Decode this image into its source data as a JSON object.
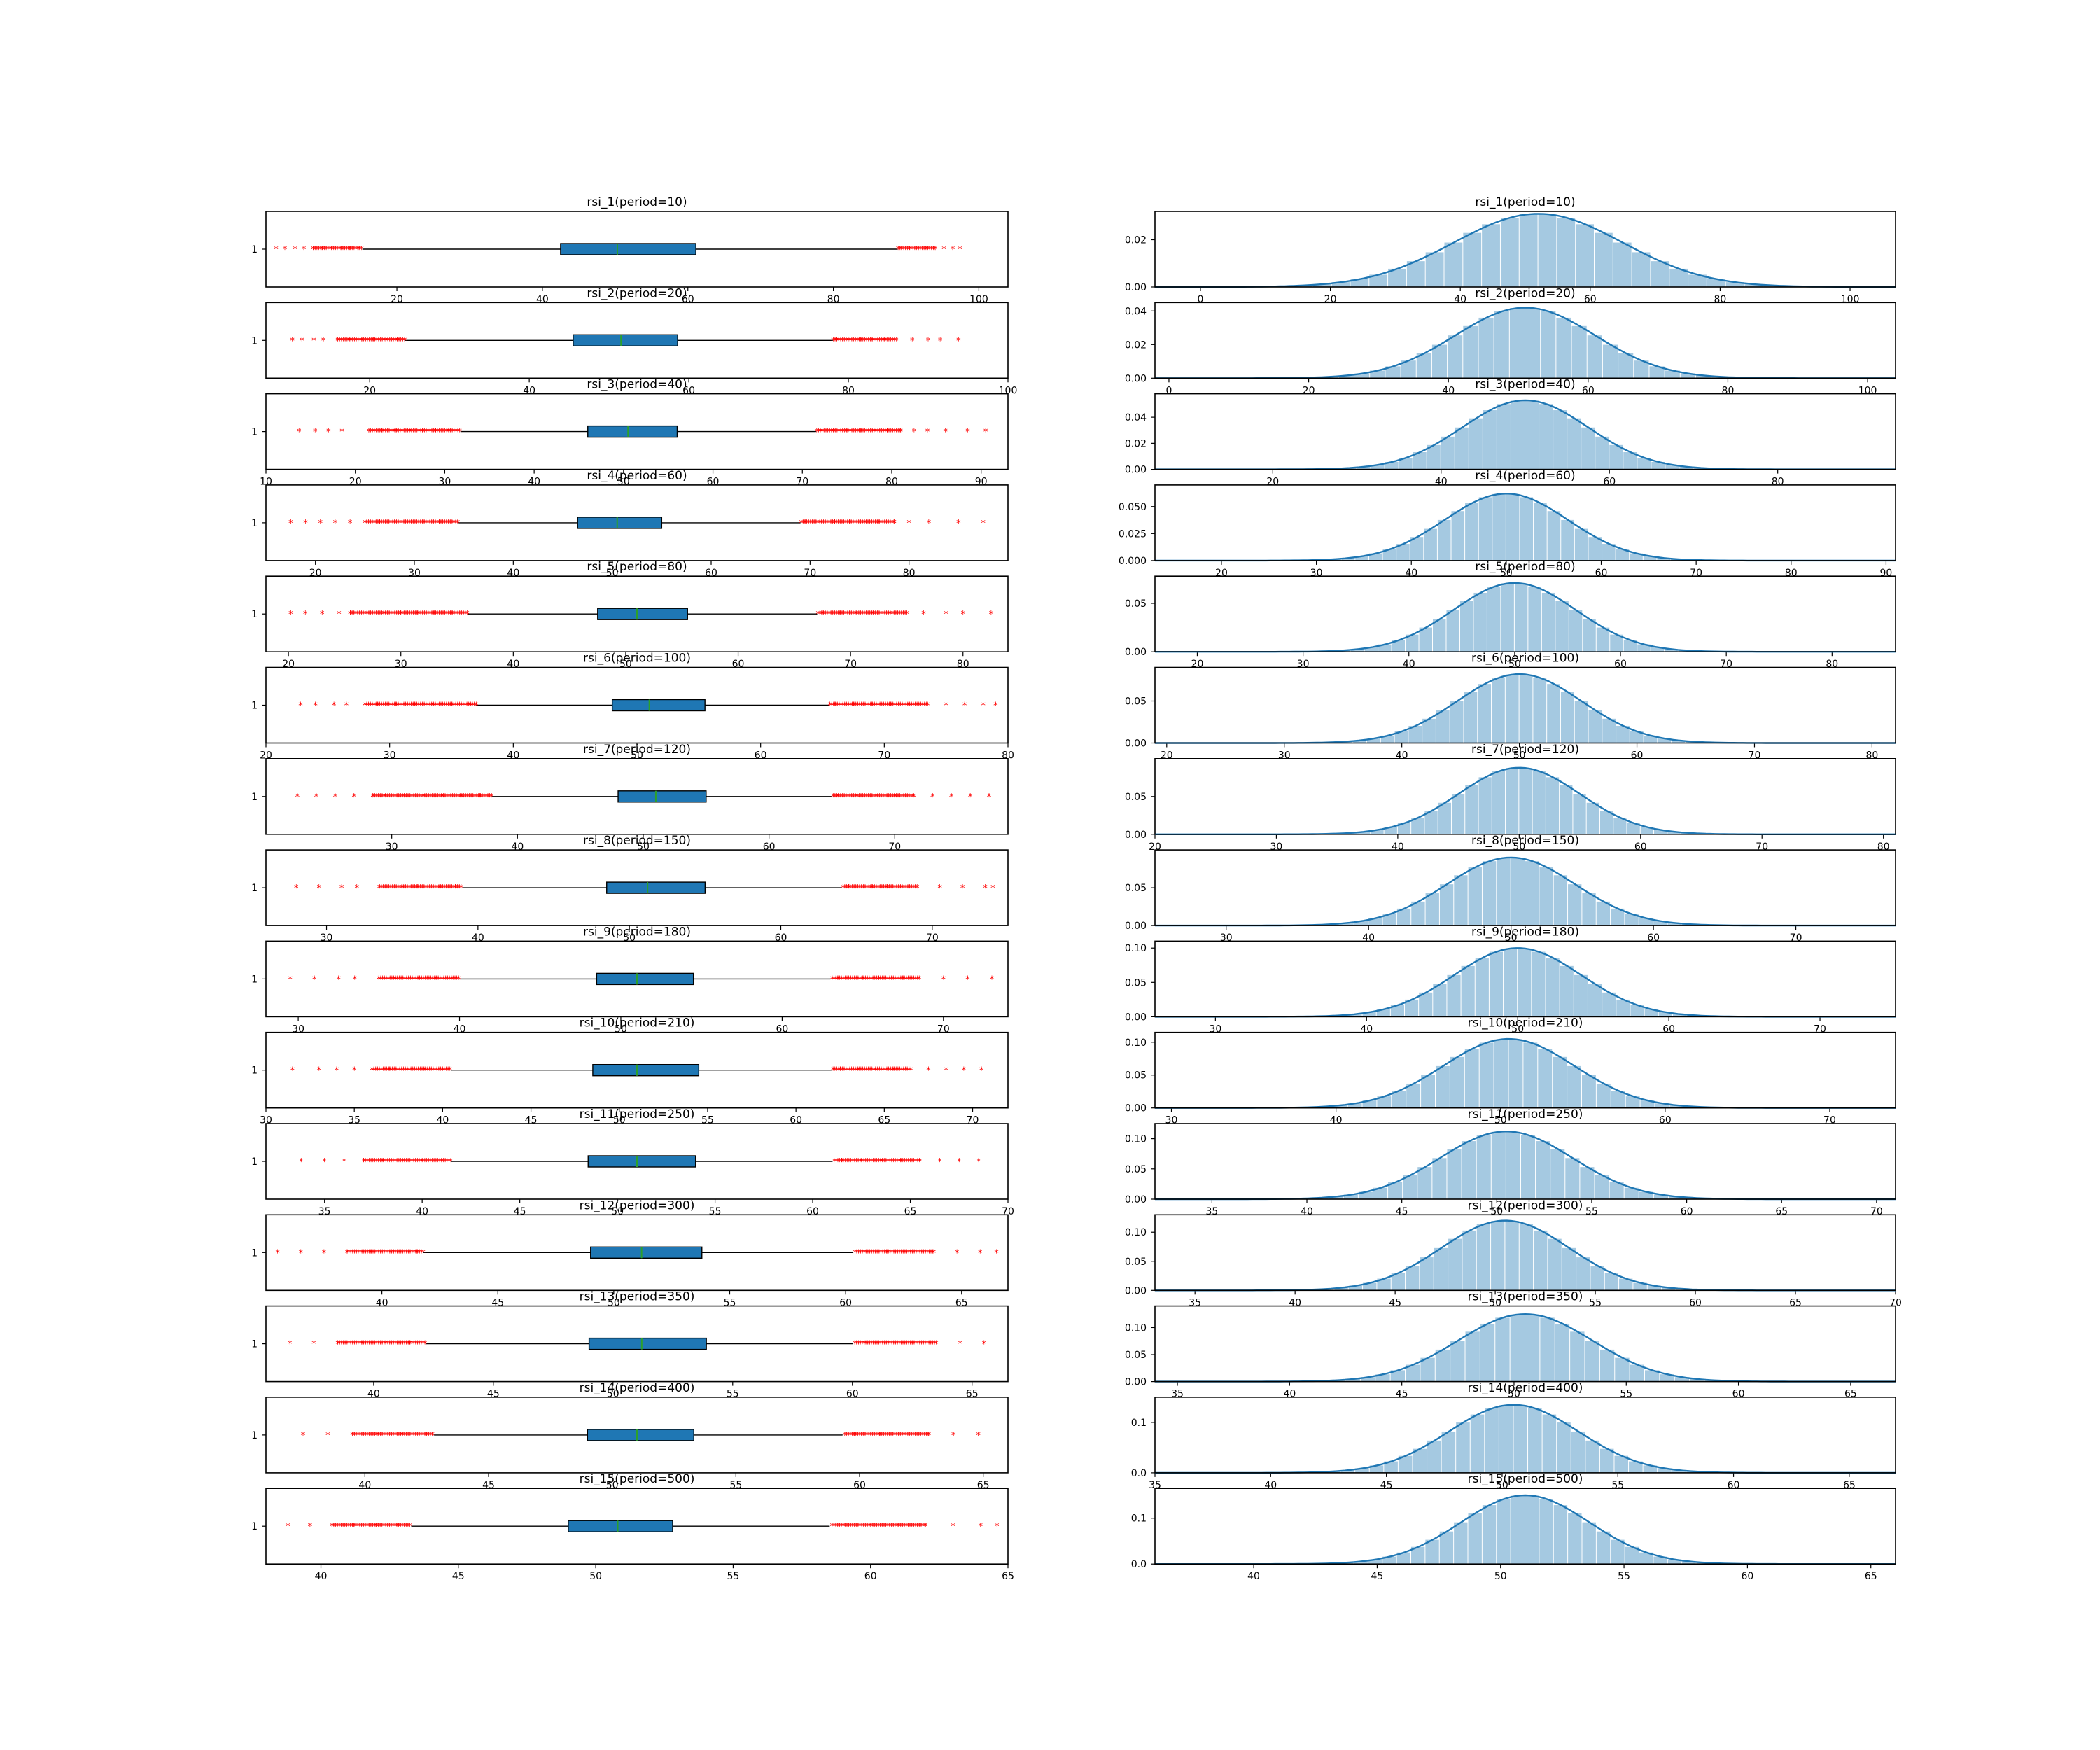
{
  "figure": {
    "box_color": "#1f77b4",
    "median_color": "#2ca02c",
    "flier_color": "#ff0000",
    "flier_marker": "*",
    "hist_color": "#1f77b4"
  },
  "chart_data": [
    {
      "type": "box",
      "title": "rsi_1(period=10)",
      "xlim": [
        2,
        104
      ],
      "xticks": [
        0,
        20,
        40,
        60,
        80,
        100
      ],
      "ytick": "1",
      "whislo": 15.3,
      "q1": 42.5,
      "median": 50.3,
      "q3": 61.1,
      "whishi": 88.8,
      "fliers_low": [
        3.4,
        4.6,
        6.0,
        7.2,
        8.5,
        9.7,
        11.0,
        12.3,
        13.5,
        14.7
      ],
      "fliers_high": [
        89.3,
        90.5,
        91.7,
        92.9,
        94.0,
        95.2,
        96.4,
        97.4
      ]
    },
    {
      "type": "hist",
      "title": "rsi_1(period=10)",
      "xlim": [
        -7,
        107
      ],
      "ylim": [
        0,
        0.032
      ],
      "xticks": [
        0,
        20,
        40,
        60,
        80,
        100
      ],
      "yticks": [
        0.0,
        0.02
      ],
      "yticklabels": [
        "0.00",
        "0.02"
      ],
      "mean": 52,
      "std": 13,
      "peak": 0.031
    },
    {
      "type": "box",
      "title": "rsi_2(period=20)",
      "xlim": [
        7,
        100
      ],
      "xticks": [
        20,
        40,
        60,
        80,
        100
      ],
      "ytick": "1",
      "whislo": 24.5,
      "q1": 45.5,
      "median": 51.5,
      "q3": 58.6,
      "whishi": 78.0,
      "fliers_low": [
        10.3,
        11.5,
        13.0,
        14.2,
        16.0,
        17.5,
        19.0,
        20.5,
        22.0,
        23.5
      ],
      "fliers_high": [
        78.5,
        80.0,
        81.5,
        83.0,
        84.5,
        86.0,
        88.0,
        90.0,
        91.5,
        93.8
      ]
    },
    {
      "type": "hist",
      "title": "rsi_2(period=20)",
      "xlim": [
        -2,
        104
      ],
      "ylim": [
        0,
        0.045
      ],
      "xticks": [
        0,
        20,
        40,
        60,
        80,
        100
      ],
      "yticks": [
        0.0,
        0.02,
        0.04
      ],
      "yticklabels": [
        "0.00",
        "0.02",
        "0.04"
      ],
      "mean": 51,
      "std": 10,
      "peak": 0.042
    },
    {
      "type": "box",
      "title": "rsi_3(period=40)",
      "xlim": [
        10,
        93
      ],
      "xticks": [
        10,
        20,
        30,
        40,
        50,
        60,
        70,
        80,
        90
      ],
      "ytick": "1",
      "whislo": 31.8,
      "q1": 46.0,
      "median": 50.5,
      "q3": 56.0,
      "whishi": 71.5,
      "fliers_low": [
        13.7,
        15.5,
        17.0,
        18.5,
        21.5,
        23.0,
        24.5,
        26.0,
        27.5,
        29.0,
        30.5
      ],
      "fliers_high": [
        72.0,
        73.5,
        75.0,
        76.5,
        78.0,
        79.5,
        81.0,
        82.5,
        84.0,
        86.0,
        88.5,
        90.5
      ]
    },
    {
      "type": "hist",
      "title": "rsi_3(period=40)",
      "xlim": [
        6,
        94
      ],
      "ylim": [
        0,
        0.058
      ],
      "xticks": [
        20,
        40,
        60,
        80
      ],
      "yticks": [
        0.0,
        0.02,
        0.04
      ],
      "yticklabels": [
        "0.00",
        "0.02",
        "0.04"
      ],
      "mean": 50,
      "std": 7.5,
      "peak": 0.053
    },
    {
      "type": "box",
      "title": "rsi_4(period=60)",
      "xlim": [
        15,
        90
      ],
      "xticks": [
        20,
        30,
        40,
        50,
        60,
        70,
        80
      ],
      "ytick": "1",
      "whislo": 34.5,
      "q1": 46.5,
      "median": 50.5,
      "q3": 55.0,
      "whishi": 69.0,
      "fliers_low": [
        17.5,
        19.0,
        20.5,
        22.0,
        23.5,
        25.0,
        26.5,
        28.0,
        29.5,
        31.0,
        32.5,
        34.0
      ],
      "fliers_high": [
        69.5,
        71.0,
        72.5,
        74.0,
        75.5,
        77.0,
        78.5,
        80.0,
        82.0,
        85.0,
        87.5
      ]
    },
    {
      "type": "hist",
      "title": "rsi_4(period=60)",
      "xlim": [
        13,
        91
      ],
      "ylim": [
        0,
        0.07
      ],
      "xticks": [
        20,
        30,
        40,
        50,
        60,
        70,
        80,
        90
      ],
      "yticks": [
        0.0,
        0.025,
        0.05
      ],
      "yticklabels": [
        "0.000",
        "0.025",
        "0.050"
      ],
      "mean": 50,
      "std": 6.5,
      "peak": 0.062
    },
    {
      "type": "box",
      "title": "rsi_5(period=80)",
      "xlim": [
        18,
        84
      ],
      "xticks": [
        20,
        30,
        40,
        50,
        60,
        70,
        80
      ],
      "ytick": "1",
      "whislo": 36.0,
      "q1": 47.5,
      "median": 51.0,
      "q3": 55.5,
      "whishi": 67.0,
      "fliers_low": [
        20.2,
        21.5,
        23.0,
        24.5,
        25.5,
        27.0,
        28.5,
        30.0,
        31.5,
        33.0,
        34.5
      ],
      "fliers_high": [
        67.5,
        69.0,
        70.5,
        72.0,
        73.5,
        75.0,
        76.5,
        78.5,
        80.0,
        82.5
      ]
    },
    {
      "type": "hist",
      "title": "rsi_5(period=80)",
      "xlim": [
        16,
        86
      ],
      "ylim": [
        0,
        0.078
      ],
      "xticks": [
        20,
        30,
        40,
        50,
        60,
        70,
        80
      ],
      "yticks": [
        0.0,
        0.05
      ],
      "yticklabels": [
        "0.00",
        "0.05"
      ],
      "mean": 50,
      "std": 5.8,
      "peak": 0.071
    },
    {
      "type": "box",
      "title": "rsi_6(period=100)",
      "xlim": [
        20,
        80
      ],
      "xticks": [
        20,
        30,
        40,
        50,
        60,
        70,
        80
      ],
      "ytick": "1",
      "whislo": 37.0,
      "q1": 48.0,
      "median": 51.0,
      "q3": 55.5,
      "whishi": 65.5,
      "fliers_low": [
        22.8,
        24.0,
        25.5,
        26.5,
        28.0,
        29.0,
        30.5,
        32.0,
        33.5,
        35.0,
        36.5
      ],
      "fliers_high": [
        66.0,
        67.5,
        69.0,
        70.5,
        72.0,
        73.5,
        75.0,
        76.5,
        78.0,
        79.0
      ]
    },
    {
      "type": "hist",
      "title": "rsi_6(period=100)",
      "xlim": [
        19,
        82
      ],
      "ylim": [
        0,
        0.09
      ],
      "xticks": [
        20,
        30,
        40,
        50,
        60,
        70,
        80
      ],
      "yticks": [
        0.0,
        0.05
      ],
      "yticklabels": [
        "0.00",
        "0.05"
      ],
      "mean": 50,
      "std": 5.3,
      "peak": 0.082
    },
    {
      "type": "box",
      "title": "rsi_7(period=120)",
      "xlim": [
        20,
        79
      ],
      "xticks": [
        30,
        40,
        50,
        60,
        70
      ],
      "ytick": "1",
      "whislo": 38.0,
      "q1": 48.0,
      "median": 51.0,
      "q3": 55.0,
      "whishi": 65.0,
      "fliers_low": [
        22.5,
        24.0,
        25.5,
        27.0,
        28.5,
        29.5,
        31.0,
        32.5,
        34.0,
        35.5,
        37.0
      ],
      "fliers_high": [
        65.5,
        67.0,
        68.5,
        70.0,
        71.5,
        73.0,
        74.5,
        76.0,
        77.5
      ]
    },
    {
      "type": "hist",
      "title": "rsi_7(period=120)",
      "xlim": [
        20,
        81
      ],
      "ylim": [
        0,
        0.1
      ],
      "xticks": [
        20,
        30,
        40,
        50,
        60,
        70,
        80
      ],
      "yticks": [
        0.0,
        0.05
      ],
      "yticklabels": [
        "0.00",
        "0.05"
      ],
      "mean": 50,
      "std": 5.0,
      "peak": 0.088
    },
    {
      "type": "box",
      "title": "rsi_8(period=150)",
      "xlim": [
        26,
        75
      ],
      "xticks": [
        30,
        40,
        50,
        60,
        70
      ],
      "ytick": "1",
      "whislo": 39.0,
      "q1": 48.5,
      "median": 51.2,
      "q3": 55.0,
      "whishi": 64.0,
      "fliers_low": [
        28.0,
        29.5,
        31.0,
        32.0,
        33.5,
        35.0,
        36.0,
        37.5,
        38.5
      ],
      "fliers_high": [
        64.5,
        66.0,
        67.0,
        68.0,
        69.0,
        70.5,
        72.0,
        73.5,
        74.0
      ]
    },
    {
      "type": "hist",
      "title": "rsi_8(period=150)",
      "xlim": [
        25,
        77
      ],
      "ylim": [
        0,
        0.1
      ],
      "xticks": [
        30,
        40,
        50,
        60,
        70
      ],
      "yticks": [
        0.0,
        0.05
      ],
      "yticklabels": [
        "0.00",
        "0.05"
      ],
      "mean": 50,
      "std": 4.5,
      "peak": 0.09
    },
    {
      "type": "box",
      "title": "rsi_9(period=180)",
      "xlim": [
        28,
        74
      ],
      "xticks": [
        30,
        40,
        50,
        60,
        70
      ],
      "ytick": "1",
      "whislo": 40.0,
      "q1": 48.5,
      "median": 51.0,
      "q3": 54.5,
      "whishi": 63.0,
      "fliers_low": [
        29.5,
        31.0,
        32.5,
        33.5,
        35.0,
        36.0,
        37.5,
        38.5,
        39.5
      ],
      "fliers_high": [
        63.5,
        65.0,
        66.0,
        67.5,
        68.5,
        70.0,
        71.5,
        73.0
      ]
    },
    {
      "type": "hist",
      "title": "rsi_9(period=180)",
      "xlim": [
        26,
        75
      ],
      "ylim": [
        0,
        0.11
      ],
      "xticks": [
        30,
        40,
        50,
        60,
        70
      ],
      "yticks": [
        0.0,
        0.05,
        0.1
      ],
      "yticklabels": [
        "0.00",
        "0.05",
        "0.10"
      ],
      "mean": 50,
      "std": 4.2,
      "peak": 0.1
    },
    {
      "type": "box",
      "title": "rsi_10(period=210)",
      "xlim": [
        30,
        72
      ],
      "xticks": [
        30,
        35,
        40,
        45,
        50,
        55,
        60,
        65,
        70
      ],
      "ytick": "1",
      "whislo": 40.5,
      "q1": 48.5,
      "median": 51.0,
      "q3": 54.5,
      "whishi": 62.0,
      "fliers_low": [
        31.5,
        33.0,
        34.0,
        35.0,
        36.0,
        37.0,
        38.0,
        39.0,
        40.0
      ],
      "fliers_high": [
        62.5,
        63.5,
        64.5,
        65.5,
        66.5,
        67.5,
        68.5,
        69.5,
        70.5
      ]
    },
    {
      "type": "hist",
      "title": "rsi_10(period=210)",
      "xlim": [
        29,
        74
      ],
      "ylim": [
        0,
        0.115
      ],
      "xticks": [
        30,
        40,
        50,
        60,
        70
      ],
      "yticks": [
        0.0,
        0.05,
        0.1
      ],
      "yticklabels": [
        "0.00",
        "0.05",
        "0.10"
      ],
      "mean": 50.5,
      "std": 4.0,
      "peak": 0.105
    },
    {
      "type": "box",
      "title": "rsi_11(period=250)",
      "xlim": [
        32,
        70
      ],
      "xticks": [
        35,
        40,
        45,
        50,
        55,
        60,
        65,
        70
      ],
      "ytick": "1",
      "whislo": 41.5,
      "q1": 48.5,
      "median": 51.0,
      "q3": 54.0,
      "whishi": 61.0,
      "fliers_low": [
        33.8,
        35.0,
        36.0,
        37.0,
        38.0,
        39.0,
        40.0,
        41.0
      ],
      "fliers_high": [
        61.5,
        62.5,
        63.5,
        64.5,
        65.5,
        66.5,
        67.5,
        68.5
      ]
    },
    {
      "type": "hist",
      "title": "rsi_11(period=250)",
      "xlim": [
        32,
        71
      ],
      "ylim": [
        0,
        0.125
      ],
      "xticks": [
        35,
        40,
        45,
        50,
        55,
        60,
        65,
        70
      ],
      "yticks": [
        0.0,
        0.05,
        0.1
      ],
      "yticklabels": [
        "0.00",
        "0.05",
        "0.10"
      ],
      "mean": 50.5,
      "std": 3.5,
      "peak": 0.112
    },
    {
      "type": "box",
      "title": "rsi_12(period=300)",
      "xlim": [
        35,
        67
      ],
      "xticks": [
        40,
        45,
        50,
        55,
        60,
        65
      ],
      "ytick": "1",
      "whislo": 41.8,
      "q1": 49.0,
      "median": 51.2,
      "q3": 53.8,
      "whishi": 60.3,
      "fliers_low": [
        35.5,
        36.5,
        37.5,
        38.5,
        39.5,
        40.5,
        41.5
      ],
      "fliers_high": [
        60.8,
        61.8,
        62.8,
        63.8,
        64.8,
        65.8,
        66.5
      ]
    },
    {
      "type": "hist",
      "title": "rsi_12(period=300)",
      "xlim": [
        33,
        70
      ],
      "ylim": [
        0,
        0.13
      ],
      "xticks": [
        35,
        40,
        45,
        50,
        55,
        60,
        65,
        70
      ],
      "yticks": [
        0.0,
        0.05,
        0.1
      ],
      "yticklabels": [
        "0.00",
        "0.05",
        "0.10"
      ],
      "mean": 50.5,
      "std": 3.2,
      "peak": 0.12
    },
    {
      "type": "box",
      "title": "rsi_13(period=350)",
      "xlim": [
        35.5,
        66.5
      ],
      "xticks": [
        40,
        45,
        50,
        55,
        60,
        65
      ],
      "ytick": "1",
      "whislo": 42.2,
      "q1": 49.0,
      "median": 51.2,
      "q3": 53.9,
      "whishi": 60.0,
      "fliers_low": [
        36.5,
        37.5,
        38.5,
        39.5,
        40.5,
        41.5
      ],
      "fliers_high": [
        60.5,
        61.5,
        62.5,
        63.5,
        64.5,
        65.5
      ]
    },
    {
      "type": "hist",
      "title": "rsi_13(period=350)",
      "xlim": [
        34,
        67
      ],
      "ylim": [
        0,
        0.14
      ],
      "xticks": [
        35,
        40,
        45,
        50,
        55,
        60,
        65
      ],
      "yticks": [
        0.0,
        0.05,
        0.1
      ],
      "yticklabels": [
        "0.00",
        "0.05",
        "0.10"
      ],
      "mean": 50.5,
      "std": 3.0,
      "peak": 0.125
    },
    {
      "type": "box",
      "title": "rsi_14(period=400)",
      "xlim": [
        36,
        66
      ],
      "xticks": [
        40,
        45,
        50,
        55,
        60,
        65
      ],
      "ytick": "1",
      "whislo": 42.8,
      "q1": 49.0,
      "median": 51.0,
      "q3": 53.3,
      "whishi": 59.3,
      "fliers_low": [
        37.5,
        38.5,
        39.5,
        40.5,
        41.5,
        42.5
      ],
      "fliers_high": [
        59.8,
        60.8,
        61.8,
        62.8,
        63.8,
        64.8
      ]
    },
    {
      "type": "hist",
      "title": "rsi_14(period=400)",
      "xlim": [
        35,
        67
      ],
      "ylim": [
        0,
        0.15
      ],
      "xticks": [
        35,
        40,
        45,
        50,
        55,
        60,
        65
      ],
      "yticks": [
        0.0,
        0.1
      ],
      "yticklabels": [
        "0.0",
        "0.1"
      ],
      "mean": 50.5,
      "std": 2.8,
      "peak": 0.135
    },
    {
      "type": "box",
      "title": "rsi_15(period=500)",
      "xlim": [
        38,
        65
      ],
      "xticks": [
        40,
        45,
        50,
        55,
        60,
        65
      ],
      "ytick": "1",
      "whislo": 43.3,
      "q1": 49.0,
      "median": 50.8,
      "q3": 52.8,
      "whishi": 58.5,
      "fliers_low": [
        38.8,
        39.6,
        40.4,
        41.2,
        42.0,
        42.8
      ],
      "fliers_high": [
        59.0,
        60.0,
        61.0,
        62.0,
        63.0,
        64.0,
        64.6
      ]
    },
    {
      "type": "hist",
      "title": "rsi_15(period=500)",
      "xlim": [
        36,
        66
      ],
      "ylim": [
        0,
        0.165
      ],
      "xticks": [
        40,
        45,
        50,
        55,
        60,
        65
      ],
      "yticks": [
        0.0,
        0.1
      ],
      "yticklabels": [
        "0.0",
        "0.1"
      ],
      "mean": 51,
      "std": 2.6,
      "peak": 0.15
    }
  ]
}
